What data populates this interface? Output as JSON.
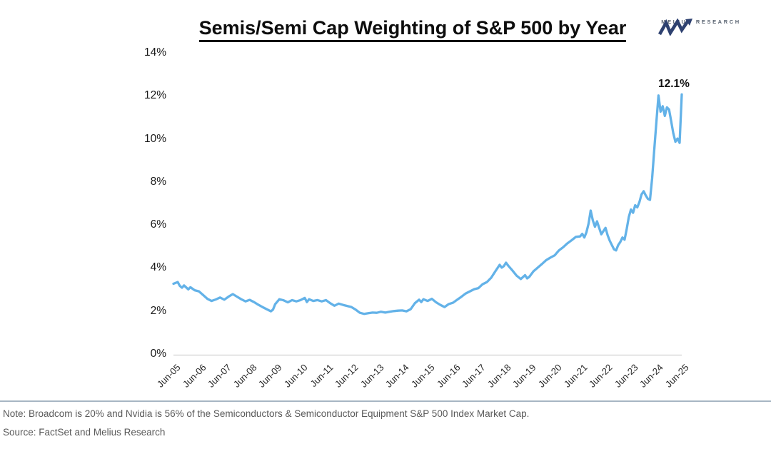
{
  "header": {
    "title": "Semis/Semi Cap Weighting of S&P 500 by Year",
    "logo_text": "MELIUS RESEARCH",
    "logo_color": "#2e4170"
  },
  "chart_data": {
    "type": "line",
    "title": "Semis/Semi Cap Weighting of S&P 500 by Year",
    "series_name": "Semis/Semi Cap weighting of S&P 500",
    "line_color": "#63B2E8",
    "axis_line_color": "#d9d9d9",
    "grid": false,
    "legend": "none",
    "ylim": [
      0,
      14
    ],
    "y_tick_labels": [
      "0%",
      "2%",
      "4%",
      "6%",
      "8%",
      "10%",
      "12%",
      "14%"
    ],
    "x_tick_labels": [
      "Jun-05",
      "Jun-06",
      "Jun-07",
      "Jun-08",
      "Jun-09",
      "Jun-10",
      "Jun-11",
      "Jun-12",
      "Jun-13",
      "Jun-14",
      "Jun-15",
      "Jun-16",
      "Jun-17",
      "Jun-18",
      "Jun-19",
      "Jun-20",
      "Jun-21",
      "Jun-22",
      "Jun-23",
      "Jun-24",
      "Jun-25"
    ],
    "x_unit": "months since Jun-2005",
    "annotation": {
      "text": "12.1%",
      "t": 240,
      "value": 12.1
    },
    "points": [
      [
        0,
        3.3
      ],
      [
        2,
        3.38
      ],
      [
        3,
        3.2
      ],
      [
        4,
        3.12
      ],
      [
        5,
        3.22
      ],
      [
        7,
        3.04
      ],
      [
        8,
        3.14
      ],
      [
        10,
        3.0
      ],
      [
        12,
        2.95
      ],
      [
        14,
        2.78
      ],
      [
        16,
        2.6
      ],
      [
        18,
        2.5
      ],
      [
        20,
        2.57
      ],
      [
        22,
        2.66
      ],
      [
        24,
        2.56
      ],
      [
        26,
        2.7
      ],
      [
        28,
        2.82
      ],
      [
        30,
        2.7
      ],
      [
        32,
        2.58
      ],
      [
        34,
        2.48
      ],
      [
        36,
        2.55
      ],
      [
        38,
        2.45
      ],
      [
        40,
        2.33
      ],
      [
        42,
        2.22
      ],
      [
        44,
        2.12
      ],
      [
        46,
        2.02
      ],
      [
        47,
        2.1
      ],
      [
        48,
        2.35
      ],
      [
        50,
        2.58
      ],
      [
        52,
        2.53
      ],
      [
        54,
        2.44
      ],
      [
        56,
        2.54
      ],
      [
        58,
        2.48
      ],
      [
        60,
        2.54
      ],
      [
        62,
        2.64
      ],
      [
        63,
        2.45
      ],
      [
        64,
        2.58
      ],
      [
        66,
        2.5
      ],
      [
        68,
        2.54
      ],
      [
        70,
        2.48
      ],
      [
        72,
        2.54
      ],
      [
        74,
        2.4
      ],
      [
        76,
        2.28
      ],
      [
        78,
        2.38
      ],
      [
        80,
        2.32
      ],
      [
        82,
        2.27
      ],
      [
        84,
        2.22
      ],
      [
        86,
        2.1
      ],
      [
        88,
        1.95
      ],
      [
        90,
        1.9
      ],
      [
        92,
        1.93
      ],
      [
        94,
        1.96
      ],
      [
        96,
        1.95
      ],
      [
        98,
        2.0
      ],
      [
        100,
        1.96
      ],
      [
        102,
        2.0
      ],
      [
        104,
        2.03
      ],
      [
        106,
        2.05
      ],
      [
        108,
        2.06
      ],
      [
        110,
        2.02
      ],
      [
        112,
        2.12
      ],
      [
        114,
        2.4
      ],
      [
        116,
        2.56
      ],
      [
        117,
        2.45
      ],
      [
        118,
        2.58
      ],
      [
        120,
        2.5
      ],
      [
        122,
        2.6
      ],
      [
        124,
        2.44
      ],
      [
        126,
        2.32
      ],
      [
        128,
        2.22
      ],
      [
        130,
        2.36
      ],
      [
        132,
        2.42
      ],
      [
        134,
        2.56
      ],
      [
        136,
        2.7
      ],
      [
        138,
        2.85
      ],
      [
        140,
        2.95
      ],
      [
        142,
        3.05
      ],
      [
        144,
        3.1
      ],
      [
        146,
        3.28
      ],
      [
        148,
        3.38
      ],
      [
        150,
        3.58
      ],
      [
        152,
        3.88
      ],
      [
        154,
        4.18
      ],
      [
        155,
        4.05
      ],
      [
        156,
        4.12
      ],
      [
        157,
        4.28
      ],
      [
        158,
        4.15
      ],
      [
        160,
        3.92
      ],
      [
        162,
        3.68
      ],
      [
        164,
        3.52
      ],
      [
        166,
        3.7
      ],
      [
        167,
        3.55
      ],
      [
        168,
        3.62
      ],
      [
        170,
        3.88
      ],
      [
        172,
        4.05
      ],
      [
        174,
        4.22
      ],
      [
        176,
        4.4
      ],
      [
        178,
        4.52
      ],
      [
        180,
        4.62
      ],
      [
        182,
        4.85
      ],
      [
        184,
        5.0
      ],
      [
        186,
        5.18
      ],
      [
        188,
        5.32
      ],
      [
        190,
        5.48
      ],
      [
        192,
        5.5
      ],
      [
        193,
        5.62
      ],
      [
        194,
        5.45
      ],
      [
        195,
        5.7
      ],
      [
        196,
        6.1
      ],
      [
        197,
        6.7
      ],
      [
        198,
        6.25
      ],
      [
        199,
        5.95
      ],
      [
        200,
        6.2
      ],
      [
        201,
        5.9
      ],
      [
        202,
        5.6
      ],
      [
        204,
        5.9
      ],
      [
        205,
        5.55
      ],
      [
        206,
        5.3
      ],
      [
        207,
        5.1
      ],
      [
        208,
        4.9
      ],
      [
        209,
        4.85
      ],
      [
        210,
        5.1
      ],
      [
        211,
        5.25
      ],
      [
        212,
        5.45
      ],
      [
        213,
        5.35
      ],
      [
        214,
        5.85
      ],
      [
        215,
        6.4
      ],
      [
        216,
        6.75
      ],
      [
        217,
        6.6
      ],
      [
        218,
        6.95
      ],
      [
        219,
        6.85
      ],
      [
        220,
        7.1
      ],
      [
        221,
        7.45
      ],
      [
        222,
        7.6
      ],
      [
        223,
        7.4
      ],
      [
        224,
        7.25
      ],
      [
        225,
        7.2
      ],
      [
        226,
        8.2
      ],
      [
        227,
        9.5
      ],
      [
        228,
        10.8
      ],
      [
        229,
        12.05
      ],
      [
        230,
        11.3
      ],
      [
        231,
        11.55
      ],
      [
        232,
        11.1
      ],
      [
        233,
        11.5
      ],
      [
        234,
        11.4
      ],
      [
        235,
        10.85
      ],
      [
        236,
        10.3
      ],
      [
        237,
        9.9
      ],
      [
        238,
        10.05
      ],
      [
        239,
        9.85
      ],
      [
        240,
        12.1
      ]
    ]
  },
  "footer": {
    "note": "Note: Broadcom is 20% and Nvidia is 56% of the Semiconductors & Semiconductor Equipment S&P 500 Index Market Cap.",
    "source": "Source: FactSet and Melius Research"
  }
}
